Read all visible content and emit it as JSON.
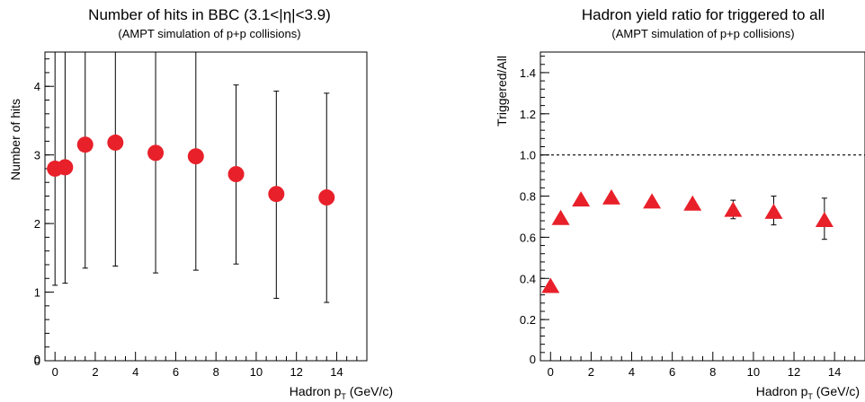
{
  "chart_data": [
    {
      "type": "scatter",
      "title": "Number of hits in BBC (3.1<|η|<3.9)",
      "subtitle": "(AMPT simulation of p+p collisions)",
      "xlabel": "Hadron p",
      "xlabel_subscript": "T",
      "xlabel_suffix": " (GeV/c)",
      "ylabel": "Number of hits",
      "xlim": [
        -0.5,
        15.5
      ],
      "ylim": [
        0,
        4.5
      ],
      "xticks": [
        0,
        2,
        4,
        6,
        8,
        10,
        12,
        14
      ],
      "yticks": [
        0,
        1,
        2,
        3,
        4
      ],
      "marker": "circle",
      "marker_color": "#e8202a",
      "reference_line": null,
      "series": [
        {
          "x": [
            0,
            0.5,
            1.5,
            3,
            5,
            7,
            9,
            11,
            13.5
          ],
          "y": [
            2.8,
            2.82,
            3.15,
            3.18,
            3.03,
            2.98,
            2.72,
            2.43,
            2.38
          ],
          "err_low": [
            1.1,
            1.13,
            1.35,
            1.38,
            1.28,
            1.32,
            1.41,
            0.91,
            0.85
          ],
          "err_high": [
            4.5,
            4.5,
            4.5,
            4.5,
            4.5,
            4.5,
            4.02,
            3.93,
            3.9
          ]
        }
      ]
    },
    {
      "type": "scatter",
      "title": "Hadron yield ratio for triggered to all",
      "subtitle": "(AMPT simulation of p+p collisions)",
      "xlabel": "Hadron p",
      "xlabel_subscript": "T",
      "xlabel_suffix": " (GeV/c)",
      "ylabel": "Triggered/All",
      "xlim": [
        -0.5,
        15.5
      ],
      "ylim": [
        0,
        1.5
      ],
      "xticks": [
        0,
        2,
        4,
        6,
        8,
        10,
        12,
        14
      ],
      "yticks": [
        0.2,
        0.4,
        0.6,
        0.8,
        1.0,
        1.2,
        1.4
      ],
      "ytick_labels": [
        "0.2",
        "0.4",
        "0.6",
        "0.8",
        "1.0",
        "1.2",
        "1.4"
      ],
      "marker": "triangle",
      "marker_color": "#e8202a",
      "reference_line": 1.0,
      "series": [
        {
          "x": [
            0,
            0.5,
            1.5,
            3,
            5,
            7,
            9,
            11,
            13.5
          ],
          "y": [
            0.36,
            0.69,
            0.78,
            0.79,
            0.77,
            0.76,
            0.73,
            0.72,
            0.68
          ],
          "err_low": [
            0.36,
            0.69,
            0.78,
            0.79,
            0.77,
            0.76,
            0.69,
            0.66,
            0.59
          ],
          "err_high": [
            0.36,
            0.69,
            0.78,
            0.79,
            0.77,
            0.76,
            0.78,
            0.8,
            0.79
          ]
        }
      ]
    }
  ]
}
